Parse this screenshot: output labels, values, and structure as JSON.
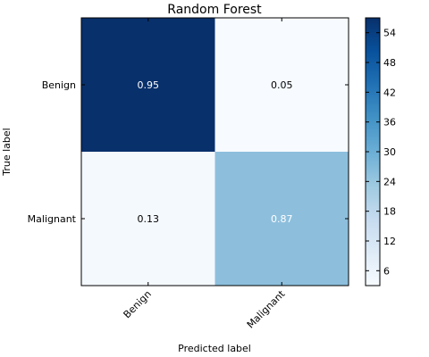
{
  "chart_data": {
    "type": "heatmap",
    "title": "Random Forest",
    "xlabel": "Predicted label",
    "ylabel": "True label",
    "x_categories": [
      "Benign",
      "Malignant"
    ],
    "y_categories": [
      "Benign",
      "Malignant"
    ],
    "cell_labels": [
      [
        "0.95",
        "0.05"
      ],
      [
        "0.13",
        "0.87"
      ]
    ],
    "values": [
      [
        0.95,
        0.05
      ],
      [
        0.13,
        0.87
      ]
    ],
    "colorbar": {
      "colormap": "Blues",
      "ticks": [
        "6",
        "12",
        "18",
        "24",
        "30",
        "36",
        "42",
        "48",
        "54"
      ],
      "range": [
        3,
        57
      ]
    },
    "cell_colors": [
      [
        "#08306b",
        "#f7fbff"
      ],
      [
        "#f4f9fe",
        "#8dbfdd"
      ]
    ],
    "label_colors": [
      [
        "#ffffff",
        "#000000"
      ],
      [
        "#000000",
        "#ffffff"
      ]
    ]
  }
}
